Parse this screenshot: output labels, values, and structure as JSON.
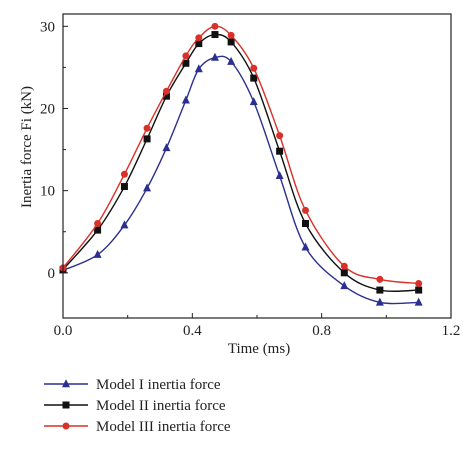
{
  "chart_data": {
    "type": "line",
    "title": "",
    "xlabel": "Time (ms)",
    "ylabel": "Inertia force Fi (kN)",
    "xlim": [
      0.0,
      1.2
    ],
    "ylim": [
      -5.5,
      31.5
    ],
    "xticks": [
      0.0,
      0.4,
      0.8,
      1.2
    ],
    "xtick_labels": [
      "0.0",
      "0.4",
      "0.8",
      "1.2"
    ],
    "yticks": [
      0,
      10,
      20,
      30
    ],
    "ytick_labels": [
      "0",
      "10",
      "20",
      "30"
    ],
    "grid": false,
    "legend_position": "bottom-left",
    "series": [
      {
        "name": "Model I inertia force",
        "color": "#2b2f8f",
        "marker": "triangle",
        "x": [
          0.0,
          0.107,
          0.19,
          0.26,
          0.32,
          0.38,
          0.42,
          0.47,
          0.52,
          0.59,
          0.67,
          0.75,
          0.87,
          0.98,
          1.1
        ],
        "y": [
          0.3,
          2.2,
          5.8,
          10.3,
          15.2,
          21.0,
          24.8,
          26.2,
          25.7,
          20.8,
          11.8,
          3.1,
          -1.6,
          -3.6,
          -3.6
        ]
      },
      {
        "name": "Model II inertia force",
        "color": "#111111",
        "marker": "square",
        "x": [
          0.0,
          0.107,
          0.19,
          0.26,
          0.32,
          0.38,
          0.42,
          0.47,
          0.52,
          0.59,
          0.67,
          0.75,
          0.87,
          0.98,
          1.1
        ],
        "y": [
          0.4,
          5.2,
          10.5,
          16.3,
          21.5,
          25.5,
          27.9,
          29.0,
          28.1,
          23.7,
          14.8,
          6.0,
          0.0,
          -2.1,
          -2.1
        ]
      },
      {
        "name": "Model III inertia force",
        "color": "#d9302a",
        "marker": "circle",
        "x": [
          0.0,
          0.107,
          0.19,
          0.26,
          0.32,
          0.38,
          0.42,
          0.47,
          0.52,
          0.59,
          0.67,
          0.75,
          0.87,
          0.98,
          1.1
        ],
        "y": [
          0.6,
          6.0,
          12.0,
          17.6,
          22.1,
          26.4,
          28.6,
          30.0,
          28.9,
          24.9,
          16.7,
          7.6,
          0.8,
          -0.8,
          -1.3
        ]
      }
    ]
  }
}
